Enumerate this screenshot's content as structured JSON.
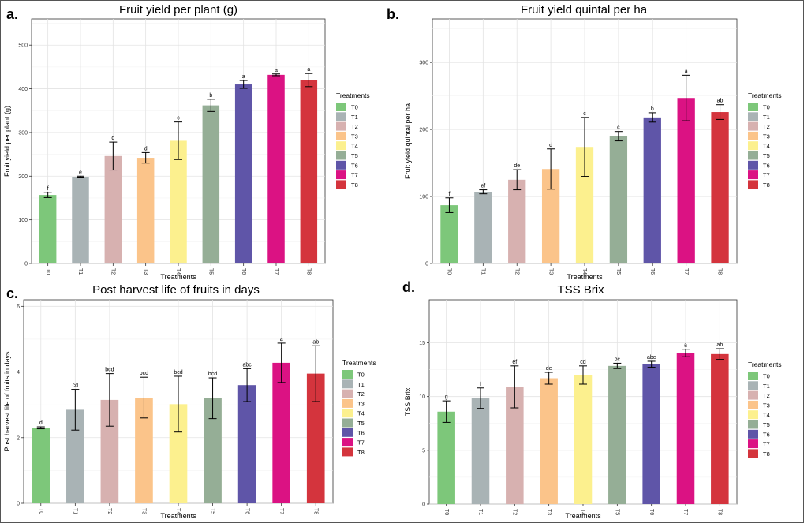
{
  "panels": [
    {
      "letter": "a."
    },
    {
      "letter": "b."
    },
    {
      "letter": "c."
    },
    {
      "letter": "d."
    }
  ],
  "legend": {
    "title": "Treatments",
    "labels": [
      "T0",
      "T1",
      "T2",
      "T3",
      "T4",
      "T5",
      "T6",
      "T7",
      "T8"
    ],
    "colors": [
      "#7DC77A",
      "#A9B3B5",
      "#D7B1B0",
      "#FBC48A",
      "#FCF08E",
      "#95AE96",
      "#5F55A8",
      "#DB1283",
      "#D4343D"
    ]
  },
  "chart_data": [
    {
      "type": "bar",
      "title": "Fruit yield per plant (g)",
      "xlabel": "Treatments",
      "ylabel": "Fruit yield per plant (g)",
      "categories": [
        "T0",
        "T1",
        "T2",
        "T3",
        "T4",
        "T5",
        "T6",
        "T7",
        "T8"
      ],
      "values": [
        157,
        198,
        246,
        242,
        281,
        362,
        410,
        432,
        420
      ],
      "errors": [
        6,
        2,
        32,
        12,
        43,
        14,
        9,
        2,
        15
      ],
      "labels": [
        "f",
        "e",
        "d",
        "d",
        "c",
        "b",
        "a",
        "a",
        "a"
      ],
      "ylim": [
        0,
        560
      ],
      "yticks": [
        0,
        100,
        200,
        300,
        400,
        500
      ]
    },
    {
      "type": "bar",
      "title": "Fruit yield quintal per ha",
      "xlabel": "Treatments",
      "ylabel": "Fruit yield quintal per ha",
      "categories": [
        "T0",
        "T1",
        "T2",
        "T3",
        "T4",
        "T5",
        "T6",
        "T7",
        "T8"
      ],
      "values": [
        87,
        107,
        125,
        141,
        174,
        190,
        218,
        247,
        226
      ],
      "errors": [
        11,
        3,
        15,
        30,
        44,
        7,
        7,
        34,
        11
      ],
      "labels": [
        "f",
        "ef",
        "de",
        "d",
        "c",
        "c",
        "b",
        "a",
        "ab"
      ],
      "ylim": [
        0,
        365
      ],
      "yticks": [
        0,
        100,
        200,
        300
      ]
    },
    {
      "type": "bar",
      "title": "Post harvest life of fruits in days",
      "xlabel": "Treatments",
      "ylabel": "Post harvest life of fruits in days",
      "categories": [
        "T0",
        "T1",
        "T2",
        "T3",
        "T4",
        "T5",
        "T6",
        "T7",
        "T8"
      ],
      "values": [
        2.3,
        2.85,
        3.15,
        3.22,
        3.02,
        3.2,
        3.6,
        4.28,
        3.95
      ],
      "errors": [
        0.03,
        0.62,
        0.8,
        0.62,
        0.85,
        0.62,
        0.5,
        0.6,
        0.85
      ],
      "labels": [
        "d",
        "cd",
        "bcd",
        "bcd",
        "bcd",
        "bcd",
        "abc",
        "a",
        "ab"
      ],
      "ylim": [
        0,
        6.2
      ],
      "yticks": [
        0,
        2,
        4,
        6
      ]
    },
    {
      "type": "bar",
      "title": "TSS Brix",
      "xlabel": "Treatments",
      "ylabel": "TSS Brix",
      "categories": [
        "T0",
        "T1",
        "T2",
        "T3",
        "T4",
        "T5",
        "T6",
        "T7",
        "T8"
      ],
      "values": [
        8.6,
        9.85,
        10.9,
        11.7,
        12.0,
        12.85,
        13.0,
        14.05,
        13.95
      ],
      "errors": [
        1.0,
        0.95,
        1.95,
        0.55,
        0.85,
        0.25,
        0.28,
        0.35,
        0.5
      ],
      "labels": [
        "g",
        "f",
        "ef",
        "de",
        "cd",
        "bc",
        "abc",
        "a",
        "ab"
      ],
      "ylim": [
        0,
        19
      ],
      "yticks": [
        0,
        5,
        10,
        15
      ]
    }
  ]
}
